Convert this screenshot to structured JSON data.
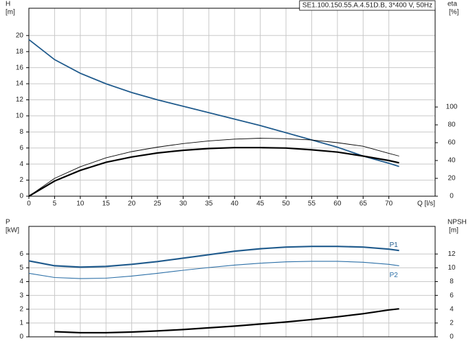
{
  "chart_data": [
    {
      "type": "line",
      "title": "SE1.100.150.55.A.4.51D.B, 3*400 V, 50Hz",
      "ylabel": "H",
      "yunit": "[m]",
      "y2label": "eta",
      "y2unit": "[%]",
      "xlabel": "Q [l/s]",
      "x": [
        0,
        5,
        10,
        15,
        20,
        25,
        30,
        35,
        40,
        45,
        50,
        55,
        60,
        65,
        70,
        72
      ],
      "xlim": [
        0,
        79
      ],
      "xticks": [
        0,
        5,
        10,
        15,
        20,
        25,
        30,
        35,
        40,
        45,
        50,
        55,
        60,
        65,
        70
      ],
      "ylim": [
        0,
        23.4
      ],
      "yticks": [
        0,
        2,
        4,
        6,
        8,
        10,
        12,
        14,
        16,
        18,
        20
      ],
      "y2lim": [
        0,
        210.8
      ],
      "y2ticks": [
        0,
        20,
        40,
        60,
        80,
        100
      ],
      "grid": true,
      "series": [
        {
          "color": "#1f5a8c",
          "values": [
            19.5,
            17,
            15.3,
            14,
            12.9,
            12,
            11.2,
            10.4,
            9.6,
            8.8,
            7.9,
            7.0,
            6.1,
            5.0,
            4.1,
            3.7
          ]
        },
        {
          "color": "#000000",
          "axis": "y2",
          "values": [
            0,
            20,
            33,
            43,
            50,
            55,
            59,
            62,
            64,
            65,
            64.5,
            63,
            60,
            56,
            48,
            45
          ]
        },
        {
          "color": "#000000",
          "axis": "y2",
          "values": [
            0,
            17,
            29,
            38,
            44,
            48.5,
            51.5,
            53.5,
            54.5,
            54.5,
            54,
            52,
            49.5,
            45,
            40,
            37.5
          ]
        }
      ]
    },
    {
      "type": "line",
      "ylabel": "P",
      "yunit": "[kW]",
      "y2label": "NPSH",
      "y2unit": "[m]",
      "x": [
        0,
        5,
        10,
        15,
        20,
        25,
        30,
        35,
        40,
        45,
        50,
        55,
        60,
        65,
        70,
        72
      ],
      "xlim": [
        0,
        79
      ],
      "ylim": [
        0,
        8
      ],
      "yticks": [
        0,
        1,
        2,
        3,
        4,
        5,
        6
      ],
      "y2lim": [
        0,
        16
      ],
      "y2ticks": [
        0,
        2,
        4,
        6,
        8,
        10,
        12
      ],
      "grid": true,
      "series": [
        {
          "name": "P1",
          "color": "#1f5a8c",
          "values": [
            5.5,
            5.15,
            5.05,
            5.1,
            5.25,
            5.45,
            5.7,
            5.95,
            6.2,
            6.38,
            6.5,
            6.55,
            6.55,
            6.5,
            6.35,
            6.25
          ]
        },
        {
          "name": "P2",
          "color": "#2a6ea6",
          "values": [
            4.6,
            4.3,
            4.22,
            4.25,
            4.4,
            4.6,
            4.82,
            5.02,
            5.2,
            5.33,
            5.43,
            5.47,
            5.47,
            5.4,
            5.25,
            5.15
          ]
        },
        {
          "color": "#000000",
          "axis": "y2",
          "values": [
            null,
            0.75,
            0.6,
            0.6,
            0.7,
            0.85,
            1.05,
            1.3,
            1.55,
            1.85,
            2.15,
            2.5,
            2.9,
            3.35,
            3.9,
            4.05
          ]
        }
      ]
    }
  ]
}
